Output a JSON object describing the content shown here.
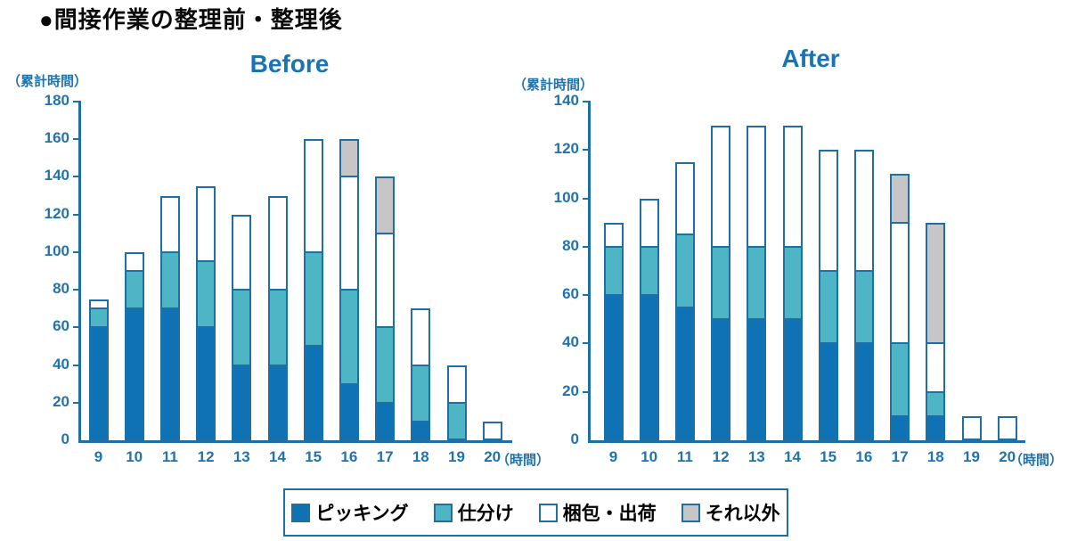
{
  "page_title": "●間接作業の整理前・整理後",
  "colors": {
    "picking_blue": "#0e72b5",
    "sorting_teal": "#4db5c4",
    "packing_white": "#ffffff",
    "other_gray": "#c6c5c8",
    "stroke_blue": "#1e6fa4",
    "axis_text_blue": "#2173ac",
    "title_blue": "#1a74b2"
  },
  "legend": {
    "items": [
      {
        "label": "ピッキング",
        "color": "#0e72b5"
      },
      {
        "label": "仕分け",
        "color": "#4db5c4"
      },
      {
        "label": "梱包・出荷",
        "color": "#ffffff"
      },
      {
        "label": "それ以外",
        "color": "#c6c5c8"
      }
    ]
  },
  "chart_data": [
    {
      "type": "bar",
      "stacked": true,
      "title": "Before",
      "unit_label": "（累計時間）",
      "x_unit_label": "（時間）",
      "ylim": [
        0,
        180
      ],
      "ytick_step": 20,
      "grid": false,
      "categories": [
        9,
        10,
        11,
        12,
        13,
        14,
        15,
        16,
        17,
        18,
        19,
        20
      ],
      "series": [
        {
          "name": "ピッキング",
          "color": "#0e72b5",
          "values": [
            60,
            70,
            70,
            60,
            40,
            40,
            50,
            30,
            20,
            10,
            0,
            0
          ]
        },
        {
          "name": "仕分け",
          "color": "#4db5c4",
          "values": [
            10,
            20,
            30,
            35,
            40,
            40,
            50,
            50,
            40,
            30,
            20,
            0
          ]
        },
        {
          "name": "梱包・出荷",
          "color": "#ffffff",
          "values": [
            5,
            10,
            30,
            40,
            40,
            50,
            60,
            60,
            50,
            30,
            20,
            10
          ]
        },
        {
          "name": "それ以外",
          "color": "#c6c5c8",
          "values": [
            0,
            0,
            0,
            0,
            0,
            0,
            0,
            20,
            30,
            0,
            0,
            0
          ]
        }
      ],
      "totals": [
        75,
        100,
        130,
        135,
        120,
        130,
        160,
        160,
        140,
        70,
        40,
        10
      ]
    },
    {
      "type": "bar",
      "stacked": true,
      "title": "After",
      "unit_label": "（累計時間）",
      "x_unit_label": "（時間）",
      "ylim": [
        0,
        140
      ],
      "ytick_step": 20,
      "grid": false,
      "categories": [
        9,
        10,
        11,
        12,
        13,
        14,
        15,
        16,
        17,
        18,
        19,
        20
      ],
      "series": [
        {
          "name": "ピッキング",
          "color": "#0e72b5",
          "values": [
            60,
            60,
            55,
            50,
            50,
            50,
            40,
            40,
            10,
            10,
            0,
            0
          ]
        },
        {
          "name": "仕分け",
          "color": "#4db5c4",
          "values": [
            20,
            20,
            30,
            30,
            30,
            30,
            30,
            30,
            30,
            10,
            0,
            0
          ]
        },
        {
          "name": "梱包・出荷",
          "color": "#ffffff",
          "values": [
            10,
            20,
            30,
            50,
            50,
            50,
            50,
            50,
            50,
            20,
            10,
            10
          ]
        },
        {
          "name": "それ以外",
          "color": "#c6c5c8",
          "values": [
            0,
            0,
            0,
            0,
            0,
            0,
            0,
            0,
            20,
            50,
            0,
            0
          ]
        }
      ],
      "totals": [
        90,
        100,
        115,
        130,
        130,
        130,
        120,
        120,
        110,
        90,
        10,
        10
      ]
    }
  ]
}
